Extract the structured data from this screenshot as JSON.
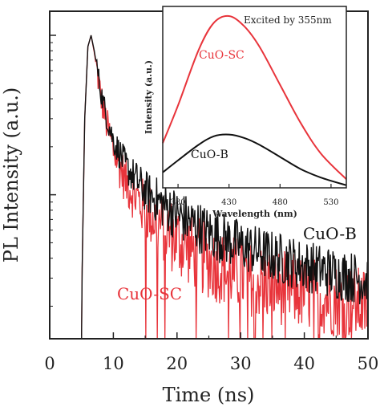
{
  "colors": {
    "cuo_b": "#111111",
    "cuo_sc": "#e8343b",
    "axis": "#222222"
  },
  "chart_data": [
    {
      "type": "line",
      "xlabel": "Time (ns)",
      "ylabel": "PL Intensity (a.u.)",
      "xlim": [
        0,
        50
      ],
      "x_ticks": [
        "0",
        "10",
        "20",
        "30",
        "40",
        "50"
      ],
      "y_scale": "log",
      "y_tick_labels": [],
      "grid": false,
      "series": [
        {
          "name": "CuO-B",
          "color": "#111111",
          "x": [
            5,
            5.5,
            6,
            6.5,
            7,
            8,
            9,
            10,
            12,
            15,
            20,
            25,
            30,
            35,
            40,
            45,
            50
          ],
          "y": [
            0.02,
            0.3,
            0.85,
            1.0,
            0.8,
            0.45,
            0.3,
            0.22,
            0.15,
            0.105,
            0.075,
            0.058,
            0.048,
            0.041,
            0.036,
            0.032,
            0.029
          ]
        },
        {
          "name": "CuO-SC",
          "color": "#e8343b",
          "x": [
            5,
            5.5,
            6,
            6.5,
            7,
            8,
            9,
            10,
            12,
            15,
            20,
            25,
            30,
            35,
            40,
            45,
            50
          ],
          "y": [
            0.02,
            0.3,
            0.85,
            1.0,
            0.78,
            0.42,
            0.27,
            0.19,
            0.12,
            0.08,
            0.052,
            0.038,
            0.031,
            0.027,
            0.024,
            0.022,
            0.02
          ]
        }
      ],
      "series_labels": [
        {
          "text": "CuO-B",
          "color": "#111111"
        },
        {
          "text": "CuO-SC",
          "color": "#e8343b"
        }
      ]
    },
    {
      "type": "line",
      "title": "Excited by 355nm",
      "xlabel": "Wavelength (nm)",
      "ylabel": "Intensity (a.u.)",
      "xlim": [
        365,
        545
      ],
      "x_ticks": [
        "380",
        "430",
        "480",
        "530"
      ],
      "y_tick_labels": [],
      "grid": false,
      "series": [
        {
          "name": "CuO-SC",
          "color": "#e8343b",
          "x": [
            365,
            380,
            400,
            415,
            430,
            445,
            460,
            480,
            500,
            520,
            545
          ],
          "y": [
            0.26,
            0.48,
            0.8,
            0.96,
            1.0,
            0.94,
            0.82,
            0.6,
            0.38,
            0.2,
            0.05
          ]
        },
        {
          "name": "CuO-B",
          "color": "#111111",
          "x": [
            365,
            380,
            400,
            415,
            430,
            445,
            460,
            480,
            500,
            520,
            545
          ],
          "y": [
            0.09,
            0.16,
            0.25,
            0.3,
            0.31,
            0.29,
            0.25,
            0.18,
            0.11,
            0.06,
            0.015
          ]
        }
      ],
      "series_labels": [
        {
          "text": "CuO-SC",
          "color": "#e8343b"
        },
        {
          "text": "CuO-B",
          "color": "#111111"
        }
      ]
    }
  ]
}
